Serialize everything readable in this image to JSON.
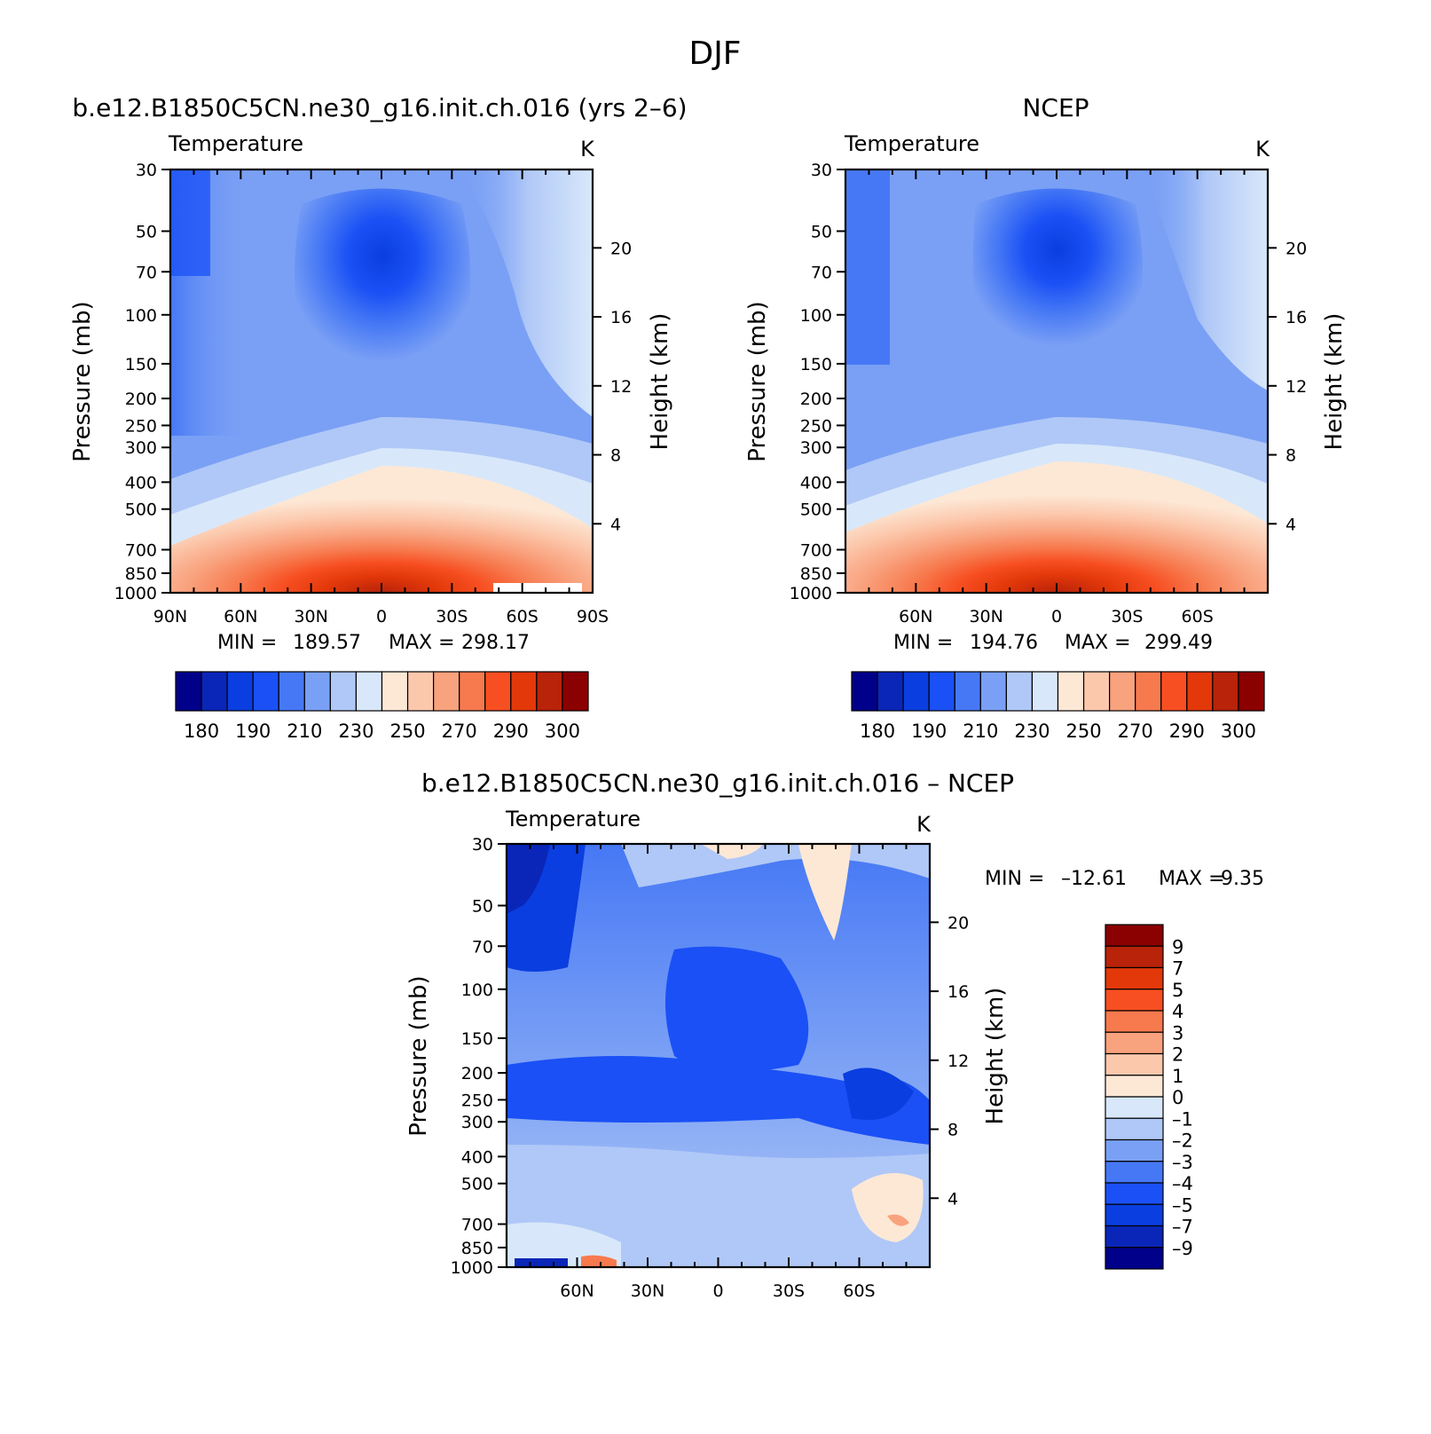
{
  "figure": {
    "title": "DJF"
  },
  "chart_data": [
    {
      "type": "heatmap",
      "panel": "model",
      "title": "b.e12.B1850C5CN.ne30_g16.init.ch.016 (yrs 2–6)",
      "subtitle_left": "Temperature",
      "subtitle_right": "K",
      "ylabel": "Pressure (mb)",
      "y2label": "Height (km)",
      "x_ticks": [
        "90N",
        "60N",
        "30N",
        "0",
        "30S",
        "60S",
        "90S"
      ],
      "y_ticks": [
        "30",
        "50",
        "70",
        "100",
        "150",
        "200",
        "250",
        "300",
        "400",
        "500",
        "700",
        "850",
        "1000"
      ],
      "y2_ticks": [
        "20",
        "16",
        "12",
        "8",
        "4"
      ],
      "ylim": [
        1000,
        30
      ],
      "xlim": [
        90,
        -90
      ],
      "min": "189.57",
      "max": "298.17",
      "min_label": "MIN =",
      "max_label": "MAX =",
      "colorbar_labels": [
        "180",
        "190",
        "210",
        "230",
        "250",
        "270",
        "290",
        "300"
      ]
    },
    {
      "type": "heatmap",
      "panel": "obs",
      "title": "NCEP",
      "subtitle_left": "Temperature",
      "subtitle_right": "K",
      "ylabel": "Pressure (mb)",
      "y2label": "Height (km)",
      "x_ticks": [
        "60N",
        "30N",
        "0",
        "30S",
        "60S"
      ],
      "y_ticks": [
        "30",
        "50",
        "70",
        "100",
        "150",
        "200",
        "250",
        "300",
        "400",
        "500",
        "700",
        "850",
        "1000"
      ],
      "y2_ticks": [
        "20",
        "16",
        "12",
        "8",
        "4"
      ],
      "ylim": [
        1000,
        30
      ],
      "xlim": [
        90,
        -90
      ],
      "min": "194.76",
      "max": "299.49",
      "min_label": "MIN =",
      "max_label": "MAX =",
      "colorbar_labels": [
        "180",
        "190",
        "210",
        "230",
        "250",
        "270",
        "290",
        "300"
      ]
    },
    {
      "type": "heatmap",
      "panel": "difference",
      "title": "b.e12.B1850C5CN.ne30_g16.init.ch.016 – NCEP",
      "subtitle_left": "Temperature",
      "subtitle_right": "K",
      "ylabel": "Pressure (mb)",
      "y2label": "Height (km)",
      "x_ticks": [
        "60N",
        "30N",
        "0",
        "30S",
        "60S"
      ],
      "y_ticks": [
        "30",
        "50",
        "70",
        "100",
        "150",
        "200",
        "250",
        "300",
        "400",
        "500",
        "700",
        "850",
        "1000"
      ],
      "y2_ticks": [
        "20",
        "16",
        "12",
        "8",
        "4"
      ],
      "ylim": [
        1000,
        30
      ],
      "xlim": [
        90,
        -90
      ],
      "min": "–12.61",
      "max": "9.35",
      "min_label": "MIN =",
      "max_label": "MAX =",
      "colorbar_labels": [
        "9",
        "7",
        "5",
        "4",
        "3",
        "2",
        "1",
        "0",
        "–1",
        "–2",
        "–3",
        "–4",
        "–5",
        "–7",
        "–9"
      ]
    }
  ],
  "colors": {
    "temperature_scale": [
      "#00008b",
      "#0a26b8",
      "#0a3ee0",
      "#1a50f5",
      "#4678f5",
      "#7aa0f5",
      "#b0c8f7",
      "#d8e8fa",
      "#fde8d6",
      "#fcc8ac",
      "#f9a27e",
      "#f77a4e",
      "#f74f22",
      "#e3380a",
      "#b8230a",
      "#8b0000"
    ],
    "difference_scale": [
      "#8b0000",
      "#b8230a",
      "#e3380a",
      "#f74f22",
      "#f77a4e",
      "#f9a27e",
      "#fcc8ac",
      "#fde8d6",
      "#d8e8fa",
      "#b0c8f7",
      "#7aa0f5",
      "#4678f5",
      "#1a50f5",
      "#0a3ee0",
      "#0a26b8",
      "#00008b"
    ]
  }
}
